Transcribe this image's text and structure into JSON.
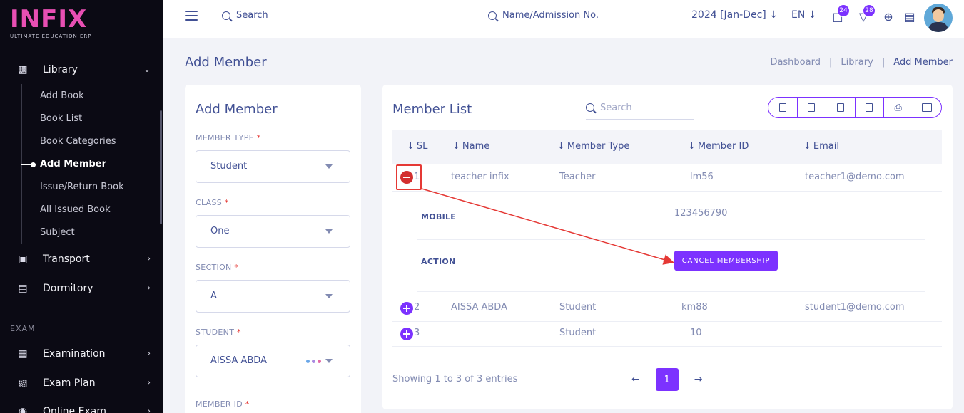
{
  "brand": {
    "logo": "INFIX",
    "tagline": "ULTIMATE EDUCATION ERP"
  },
  "sidebar": {
    "library": {
      "label": "Library",
      "icon": "library-icon"
    },
    "library_items": [
      {
        "label": "Add Book"
      },
      {
        "label": "Book List"
      },
      {
        "label": "Book Categories"
      },
      {
        "label": "Add Member"
      },
      {
        "label": "Issue/Return Book"
      },
      {
        "label": "All Issued Book"
      },
      {
        "label": "Subject"
      }
    ],
    "transport": {
      "label": "Transport"
    },
    "dormitory": {
      "label": "Dormitory"
    },
    "section_exam": "EXAM",
    "examination": {
      "label": "Examination"
    },
    "exam_plan": {
      "label": "Exam Plan"
    },
    "online_exam": {
      "label": "Online Exam"
    }
  },
  "header": {
    "search_label": "Search",
    "admission_search_label": "Name/Admission No.",
    "year": "2024 [Jan-Dec]",
    "lang": "EN",
    "chat_badge": "24",
    "notif_badge": "28"
  },
  "page": {
    "title": "Add Member",
    "breadcrumb": [
      "Dashboard",
      "Library",
      "Add Member"
    ]
  },
  "form": {
    "title": "Add Member",
    "member_type": {
      "label": "MEMBER TYPE",
      "value": "Student"
    },
    "class": {
      "label": "CLASS",
      "value": "One"
    },
    "section": {
      "label": "SECTION",
      "value": "A"
    },
    "student": {
      "label": "STUDENT",
      "value": "AISSA ABDA"
    },
    "member_id": {
      "label": "MEMBER ID"
    },
    "required_mark": "*"
  },
  "list": {
    "title": "Member List",
    "search_placeholder": "Search",
    "columns": [
      "SL",
      "Name",
      "Member Type",
      "Member ID",
      "Email"
    ],
    "rows": [
      {
        "sl": "1",
        "name": "teacher infix",
        "type": "Teacher",
        "id": "lm56",
        "email": "teacher1@demo.com"
      },
      {
        "sl": "2",
        "name": "AISSA ABDA",
        "type": "Student",
        "id": "km88",
        "email": "student1@demo.com"
      },
      {
        "sl": "3",
        "name": "",
        "type": "Student",
        "id": "10",
        "email": ""
      }
    ],
    "detail": {
      "mobile_label": "MOBILE",
      "mobile_value": "123456790",
      "action_label": "ACTION",
      "cancel_label": "CANCEL MEMBERSHIP"
    },
    "showing": "Showing 1 to 3 of 3 entries",
    "page": "1",
    "prev": "←",
    "next": "→"
  },
  "colors": {
    "accent": "#7c32ff",
    "danger": "#d32f2f",
    "text": "#415094",
    "muted": "#828bb2"
  }
}
